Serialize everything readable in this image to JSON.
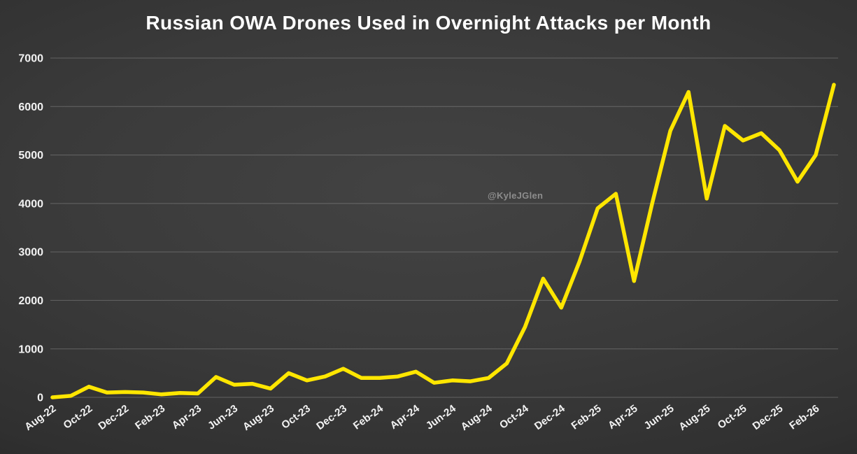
{
  "watermark": "@KyleJGlen",
  "chart_data": {
    "type": "line",
    "title": "Russian OWA Drones Used in Overnight Attacks per Month",
    "xlabel": "",
    "ylabel": "",
    "categories": [
      "Aug-22",
      "Sep-22",
      "Oct-22",
      "Nov-22",
      "Dec-22",
      "Jan-23",
      "Feb-23",
      "Mar-23",
      "Apr-23",
      "May-23",
      "Jun-23",
      "Jul-23",
      "Aug-23",
      "Sep-23",
      "Oct-23",
      "Nov-23",
      "Dec-23",
      "Jan-24",
      "Feb-24",
      "Mar-24",
      "Apr-24",
      "May-24",
      "Jun-24",
      "Jul-24",
      "Aug-24",
      "Sep-24",
      "Oct-24",
      "Nov-24",
      "Dec-24",
      "Jan-25",
      "Feb-25",
      "Mar-25",
      "Apr-25",
      "May-25",
      "Jun-25",
      "Jul-25",
      "Aug-25",
      "Sep-25",
      "Oct-25",
      "Nov-25",
      "Dec-25",
      "Jan-26",
      "Feb-26",
      "Mar-26"
    ],
    "values": [
      0,
      30,
      220,
      100,
      110,
      100,
      60,
      90,
      80,
      420,
      260,
      280,
      180,
      500,
      350,
      430,
      590,
      400,
      400,
      430,
      530,
      300,
      350,
      330,
      400,
      700,
      1450,
      2450,
      1850,
      2800,
      3900,
      4200,
      2400,
      4000,
      5500,
      6300,
      4100,
      5600,
      5300,
      5450,
      5100,
      4450,
      5000,
      6450
    ],
    "ylim": [
      0,
      7000
    ],
    "y_step": 1000,
    "y_tick_labels": [
      "0",
      "1000",
      "2000",
      "3000",
      "4000",
      "5000",
      "6000",
      "7000"
    ],
    "x_tick_every": 2,
    "grid": "horizontal",
    "legend": "none",
    "line_color": "#ffe600",
    "grid_color": "rgba(255,255,255,0.22)",
    "text_color": "#f2f2f2",
    "title_color": "#ffffff",
    "watermark_color": "#8d8d8d"
  }
}
